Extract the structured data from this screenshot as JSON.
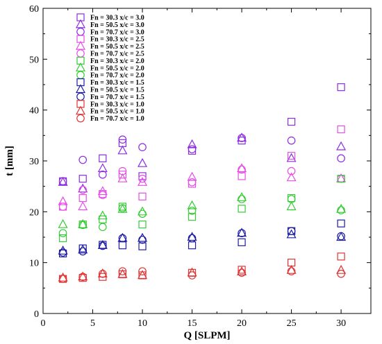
{
  "chart_data": {
    "type": "scatter",
    "title": "",
    "xlabel": "Q [SLPM]",
    "ylabel": "t [mm]",
    "xlim": [
      0,
      33
    ],
    "ylim": [
      0,
      60
    ],
    "xticks": [
      "0",
      "5",
      "10",
      "15",
      "20",
      "25",
      "30"
    ],
    "yticks": [
      "0",
      "10",
      "20",
      "30",
      "40",
      "50",
      "60"
    ],
    "grid": false,
    "legend_position": "top-left",
    "colors": {
      "x/c = 3.0": "#8b2be2",
      "x/c = 2.5": "#e64ce6",
      "x/c = 2.0": "#33cc33",
      "x/c = 1.5": "#1a1aa6",
      "x/c = 1.0": "#e03333"
    },
    "x": [
      2,
      4,
      6,
      8,
      10,
      15,
      20,
      25,
      30
    ],
    "series": [
      {
        "name": "Fn = 30.3  x/c = 3.0",
        "color": "#8b2be2",
        "marker": "square",
        "values": [
          26.0,
          26.5,
          30.5,
          33.5,
          27.0,
          32.0,
          34.0,
          37.7,
          44.5
        ]
      },
      {
        "name": "Fn = 50.5  x/c = 3.0",
        "color": "#8b2be2",
        "marker": "triangle",
        "values": [
          25.8,
          24.5,
          28.5,
          32.0,
          29.5,
          33.2,
          34.5,
          30.5,
          32.8
        ]
      },
      {
        "name": "Fn = 70.7  x/c = 3.0",
        "color": "#8b2be2",
        "marker": "circle",
        "values": [
          26.0,
          30.2,
          27.3,
          34.2,
          32.7,
          32.3,
          34.5,
          34.0,
          30.5
        ]
      },
      {
        "name": "Fn = 30.3  x/c = 2.5",
        "color": "#e64ce6",
        "marker": "square",
        "values": [
          21.0,
          22.7,
          23.5,
          27.3,
          23.0,
          25.5,
          27.0,
          31.0,
          36.2
        ]
      },
      {
        "name": "Fn = 50.5  x/c = 2.5",
        "color": "#e64ce6",
        "marker": "triangle",
        "values": [
          22.0,
          21.0,
          24.0,
          26.5,
          25.8,
          26.8,
          28.5,
          26.7,
          26.5
        ]
      },
      {
        "name": "Fn = 70.7  x/c = 2.5",
        "color": "#e64ce6",
        "marker": "circle",
        "values": [
          21.0,
          24.3,
          23.3,
          28.0,
          26.5,
          25.8,
          28.3,
          28.0,
          26.5
        ]
      },
      {
        "name": "Fn = 30.3  x/c = 2.0",
        "color": "#33cc33",
        "marker": "square",
        "values": [
          14.8,
          17.5,
          18.5,
          21.0,
          17.5,
          19.0,
          20.6,
          22.7,
          26.5
        ]
      },
      {
        "name": "Fn = 50.5  x/c = 2.0",
        "color": "#33cc33",
        "marker": "triangle",
        "values": [
          17.5,
          17.5,
          19.2,
          20.5,
          20.0,
          21.2,
          22.8,
          21.0,
          20.5
        ]
      },
      {
        "name": "Fn = 70.7  x/c = 2.0",
        "color": "#33cc33",
        "marker": "circle",
        "values": [
          15.8,
          17.4,
          17.0,
          20.7,
          19.6,
          20.2,
          22.5,
          22.5,
          20.3
        ]
      },
      {
        "name": "Fn = 30.3  x/c = 1.5",
        "color": "#1a1aa6",
        "marker": "square",
        "values": [
          11.8,
          12.8,
          13.5,
          13.4,
          13.2,
          13.4,
          14.0,
          16.2,
          17.7
        ]
      },
      {
        "name": "Fn = 50.5  x/c = 1.5",
        "color": "#1a1aa6",
        "marker": "triangle",
        "values": [
          12.3,
          12.5,
          13.4,
          14.8,
          14.8,
          15.0,
          15.8,
          15.5,
          15.0
        ]
      },
      {
        "name": "Fn = 70.7  x/c = 1.5",
        "color": "#1a1aa6",
        "marker": "circle",
        "values": [
          12.0,
          12.2,
          13.3,
          14.8,
          14.5,
          14.8,
          15.8,
          16.2,
          15.2
        ]
      },
      {
        "name": "Fn = 30.3  x/c = 1.0",
        "color": "#e03333",
        "marker": "square",
        "values": [
          6.8,
          7.0,
          7.2,
          7.7,
          7.5,
          8.0,
          8.6,
          10.0,
          11.2
        ]
      },
      {
        "name": "Fn = 50.5  x/c = 1.0",
        "color": "#e03333",
        "marker": "triangle",
        "values": [
          7.0,
          7.2,
          7.8,
          7.7,
          7.5,
          8.0,
          8.2,
          8.5,
          8.5
        ]
      },
      {
        "name": "Fn = 70.7  x/c = 1.0",
        "color": "#e03333",
        "marker": "circle",
        "values": [
          6.8,
          7.2,
          7.8,
          8.3,
          8.3,
          7.5,
          8.0,
          8.3,
          7.8
        ]
      }
    ]
  }
}
